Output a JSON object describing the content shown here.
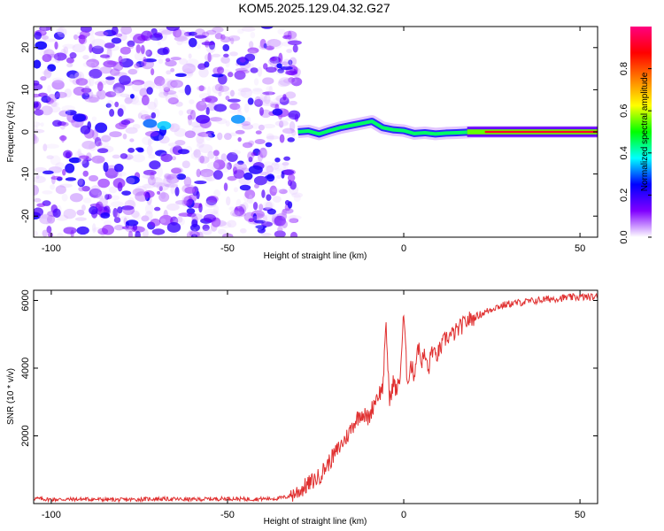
{
  "title": "KOM5.2025.129.04.32.G27",
  "chart_data": [
    {
      "type": "heatmap",
      "xlabel": "Height of straight line (km)",
      "ylabel": "Frequency (Hz)",
      "xlim": [
        -105,
        55
      ],
      "ylim": [
        -25,
        25
      ],
      "xticks": [
        -100,
        -50,
        0,
        50
      ],
      "yticks": [
        -20,
        -10,
        0,
        10,
        20
      ],
      "noise_region": [
        -105,
        -30
      ],
      "signal_track": {
        "x": [
          -30,
          -27,
          -24,
          -21,
          -18,
          -15,
          -12,
          -9,
          -6,
          -3,
          0,
          3,
          6,
          9,
          12,
          15,
          20,
          30,
          40,
          55
        ],
        "frequency": [
          0.0,
          0.2,
          -0.5,
          0.3,
          1.0,
          1.5,
          2.0,
          2.5,
          1.0,
          0.5,
          0.3,
          -0.4,
          -0.2,
          -0.5,
          -0.3,
          -0.2,
          0.0,
          0.0,
          0.0,
          0.0
        ]
      },
      "colorbar": {
        "label": "Normalized spectral amplitude",
        "ticks": [
          0.0,
          0.2,
          0.4,
          0.6,
          0.8
        ],
        "range": [
          0,
          1
        ],
        "colormap": [
          "#ffffff",
          "#8000ff",
          "#0000ff",
          "#00ffff",
          "#00ff00",
          "#ffff00",
          "#ff8000",
          "#ff0000",
          "#ff0080"
        ]
      }
    },
    {
      "type": "line",
      "xlabel": "Height of straight line (km)",
      "ylabel": "SNR (10 * v/v)",
      "xlim": [
        -105,
        55
      ],
      "ylim": [
        0,
        6300
      ],
      "xticks": [
        -100,
        -50,
        0,
        50
      ],
      "yticks": [
        2000,
        4000,
        6000
      ],
      "color": "#e03030",
      "series": [
        {
          "x": [
            -105,
            -100,
            -90,
            -80,
            -70,
            -60,
            -50,
            -45,
            -40,
            -36,
            -33,
            -30,
            -28,
            -26,
            -24,
            -22,
            -20,
            -18,
            -16,
            -14,
            -12,
            -10,
            -8,
            -6,
            -5,
            -4,
            -3,
            -2,
            -1,
            0,
            1,
            2,
            3,
            4,
            5,
            6,
            7,
            8,
            9,
            10,
            12,
            14,
            16,
            18,
            20,
            22,
            24,
            26,
            28,
            30,
            34,
            38,
            42,
            46,
            50,
            55
          ],
          "y": [
            150,
            120,
            130,
            110,
            140,
            120,
            150,
            130,
            140,
            150,
            200,
            350,
            500,
            650,
            800,
            1100,
            1400,
            1700,
            2000,
            2400,
            2700,
            2500,
            3100,
            3400,
            5200,
            3000,
            3600,
            3300,
            3800,
            5600,
            3600,
            4100,
            3800,
            4700,
            4200,
            4400,
            3900,
            4600,
            4300,
            4500,
            4900,
            5000,
            5200,
            5400,
            5500,
            5600,
            5700,
            5800,
            5850,
            5900,
            5950,
            6000,
            6050,
            6080,
            6100,
            6100
          ]
        }
      ]
    }
  ]
}
